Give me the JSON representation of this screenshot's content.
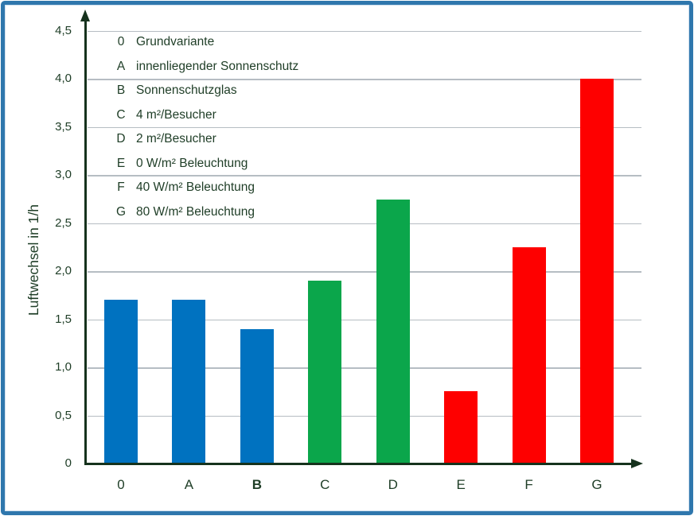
{
  "chart_data": {
    "type": "bar",
    "title": "",
    "ylabel": "Luftwechsel in 1/h",
    "xlabel": "",
    "categories": [
      "0",
      "A",
      "B",
      "C",
      "D",
      "E",
      "F",
      "G"
    ],
    "values": [
      1.7,
      1.7,
      1.4,
      1.9,
      2.75,
      0.75,
      2.25,
      4.0
    ],
    "bar_color_keys": [
      "blue",
      "blue",
      "blue",
      "green",
      "green",
      "red",
      "red",
      "red"
    ],
    "series_colors": {
      "blue": "#0072c0",
      "green": "#0ba64b",
      "red": "#fe0000"
    },
    "ylim": [
      0,
      4.7
    ],
    "ytick_step": 0.5,
    "ytick_labels": [
      "0",
      "0,5",
      "1,0",
      "1,5",
      "2,0",
      "2,5",
      "3,0",
      "3,5",
      "4,0",
      "4,5"
    ],
    "grid": true,
    "legend_position": "top-left-inside-plot",
    "legend": [
      {
        "key": "0",
        "label": "Grundvariante"
      },
      {
        "key": "A",
        "label": "innenliegender Sonnenschutz"
      },
      {
        "key": "B",
        "label": "Sonnenschutzglas"
      },
      {
        "key": "C",
        "label": "4 m²/Besucher"
      },
      {
        "key": "D",
        "label": "2 m²/Besucher"
      },
      {
        "key": "E",
        "label": "0 W/m² Beleuchtung"
      },
      {
        "key": "F",
        "label": "40 W/m² Beleuchtung"
      },
      {
        "key": "G",
        "label": "80 W/m² Beleuchtung"
      }
    ],
    "emphasized_category": "B"
  },
  "style": {
    "frame_color": "#2f77ad",
    "background": "#ffffff",
    "grid_color": "#b6bdc3",
    "axis_color": "#16321d",
    "text_color": "#1e3d26"
  }
}
